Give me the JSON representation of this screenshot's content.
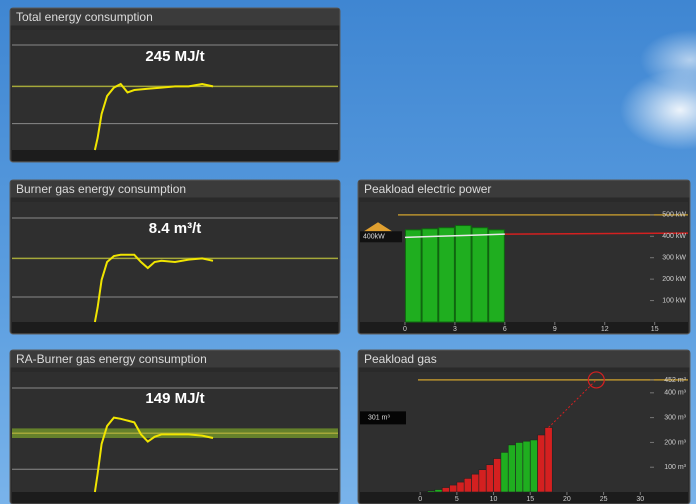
{
  "panels": [
    {
      "type": "line",
      "title": "Total energy consumption",
      "value_text": "245 MJ/t",
      "xlim": [
        0,
        24
      ],
      "ylim": [
        0,
        100
      ],
      "reference_lines": [
        87.5,
        22
      ],
      "target": 53,
      "x": [
        6.1,
        6.3,
        6.6,
        7,
        7.5,
        8,
        8.5,
        9,
        10,
        11,
        12,
        13,
        14,
        14.8
      ],
      "values": [
        0,
        10,
        30,
        45,
        52,
        55,
        48,
        50,
        51,
        52,
        53,
        53,
        55,
        53
      ]
    },
    {
      "type": "line",
      "title": "Burner gas energy consumption",
      "value_text": "8.4 m³/t",
      "xlim": [
        0,
        24
      ],
      "ylim": [
        0,
        100
      ],
      "reference_lines": [
        86.7,
        20.8
      ],
      "target": 53,
      "x": [
        6.1,
        6.3,
        6.6,
        7,
        7.5,
        8,
        9,
        9.5,
        10,
        10.5,
        11,
        12,
        13,
        14,
        14.8
      ],
      "values": [
        0,
        12,
        35,
        50,
        55,
        56,
        56,
        50,
        45,
        50,
        51,
        50,
        52,
        53,
        51
      ]
    },
    {
      "type": "line",
      "title": "RA-Burner gas energy consumption",
      "value_text": "149 MJ/t",
      "xlim": [
        0,
        24
      ],
      "ylim": [
        0,
        100
      ],
      "reference_lines": [
        86.7,
        19
      ],
      "target": 49,
      "target_band": [
        45,
        53
      ],
      "x": [
        6.1,
        6.3,
        6.6,
        7,
        7.5,
        8,
        9,
        9.5,
        10,
        10.5,
        11,
        12,
        13,
        14,
        14.8
      ],
      "values": [
        0,
        15,
        40,
        55,
        62,
        61,
        58,
        48,
        42,
        46,
        48,
        48,
        48,
        47,
        45
      ]
    },
    {
      "type": "bar",
      "title": "Peakload electric power",
      "xlim": [
        -2.7,
        17
      ],
      "ylim": [
        0,
        560
      ],
      "limit": 500,
      "x": [
        0.5,
        1.5,
        2.5,
        3.5,
        4.5,
        5.5
      ],
      "values": [
        430,
        435,
        440,
        450,
        440,
        430
      ],
      "bar_color": "#1fae1f",
      "average": {
        "x": [
          0,
          2,
          4,
          6
        ],
        "values": [
          395,
          400,
          405,
          410
        ]
      },
      "forecast": {
        "x": [
          6,
          17
        ],
        "values": [
          410,
          415
        ]
      },
      "marker": {
        "value": 400,
        "label": "400kW"
      },
      "xticks": [
        0,
        3,
        6,
        9,
        12,
        15
      ],
      "yticks": [
        {
          "value": 500,
          "label": "500 kW"
        },
        {
          "value": 400,
          "label": "400 kW"
        },
        {
          "value": 300,
          "label": "300 kW"
        },
        {
          "value": 200,
          "label": "200 kW"
        },
        {
          "value": 100,
          "label": "100 kW"
        }
      ]
    },
    {
      "type": "cumulative_bar",
      "title": "Peakload gas",
      "xlim": [
        -8.2,
        36.5
      ],
      "ylim": [
        0,
        484
      ],
      "limit": 452,
      "x": [
        0.5,
        1.5,
        2.5,
        3.5,
        4.5,
        5.5,
        6.5,
        7.5,
        8.5,
        9.5,
        10.5,
        11.5,
        12.5,
        13.5,
        14.5,
        15.5,
        16.5,
        17.5
      ],
      "values": [
        2,
        5,
        10,
        18,
        28,
        40,
        55,
        72,
        90,
        110,
        135,
        160,
        190,
        200,
        205,
        210,
        230,
        260
      ],
      "colors": [
        "#1fae1f",
        "#1fae1f",
        "#1fae1f",
        "#d42020",
        "#d42020",
        "#d42020",
        "#d42020",
        "#d42020",
        "#d42020",
        "#d42020",
        "#d42020",
        "#1fae1f",
        "#1fae1f",
        "#1fae1f",
        "#1fae1f",
        "#1fae1f",
        "#d42020",
        "#d42020"
      ],
      "marker": {
        "value": 301,
        "label": "301 m³"
      },
      "projection_x": 24,
      "xticks": [
        0,
        5,
        10,
        15,
        20,
        25,
        30
      ],
      "yticks": [
        {
          "value": 452,
          "label": "452 m³"
        },
        {
          "value": 400,
          "label": "400 m³"
        },
        {
          "value": 300,
          "label": "300 m³"
        },
        {
          "value": 200,
          "label": "200 m³"
        },
        {
          "value": 100,
          "label": "100 m³"
        }
      ]
    }
  ]
}
